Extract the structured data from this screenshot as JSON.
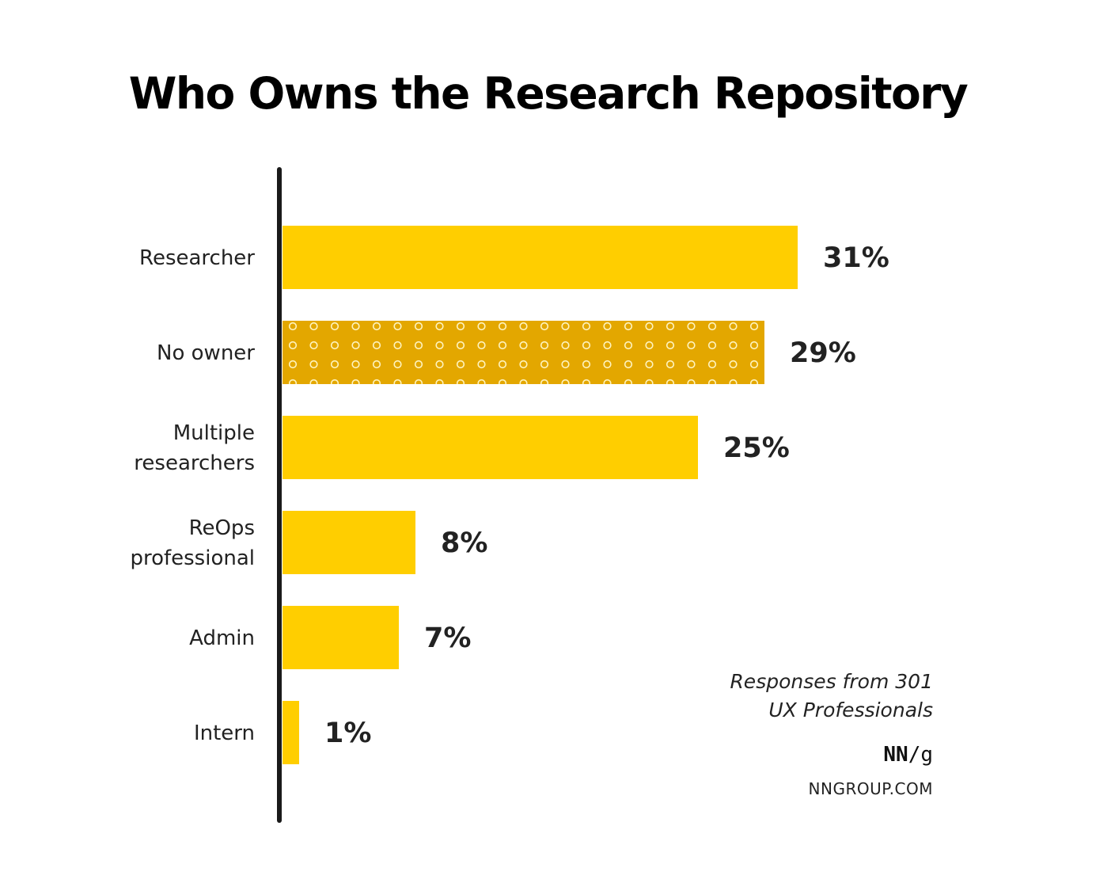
{
  "title": "Who Owns the Research Repository",
  "chart_data": {
    "type": "bar",
    "orientation": "horizontal",
    "title": "Who Owns the Research Repository",
    "categories": [
      [
        "Researcher"
      ],
      [
        "No owner"
      ],
      [
        "Multiple",
        "researchers"
      ],
      [
        "ReOps",
        "professional"
      ],
      [
        "Admin"
      ],
      [
        "Intern"
      ]
    ],
    "values": [
      31,
      29,
      25,
      8,
      7,
      1
    ],
    "value_labels": [
      "31%",
      "29%",
      "25%",
      "8%",
      "7%",
      "1%"
    ],
    "unit": "%",
    "highlight_index": 1,
    "colors": {
      "bar": "#FFCE00",
      "highlight": "#E3A700",
      "highlight_dots": "#FFF4C0",
      "axis": "#1a1a1a",
      "label": "#222222"
    },
    "xlabel": "",
    "ylabel": "",
    "grid": false,
    "legend": "none"
  },
  "footnote": {
    "line1": "Responses from 301",
    "line2": "UX Professionals"
  },
  "brand": {
    "logo_bold": "NN",
    "logo_rest": "/g",
    "url": "NNGROUP.COM"
  }
}
